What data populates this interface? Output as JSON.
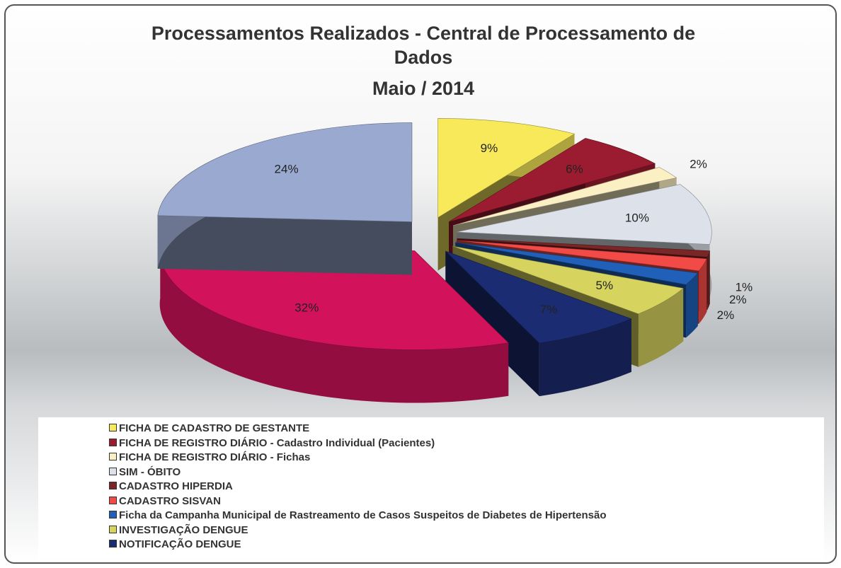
{
  "chart_data": {
    "type": "pie",
    "title": "Processamentos Realizados - Central de Processamento de Dados",
    "subtitle": "Maio / 2014",
    "categories": [
      "FICHA DE CADASTRO DE GESTANTE",
      "FICHA DE REGISTRO DIÁRIO - Cadastro Individual (Pacientes)",
      "FICHA DE REGISTRO DIÁRIO - Fichas",
      "SIM - ÓBITO",
      "CADASTRO HIPERDIA",
      "CADASTRO SISVAN",
      "Ficha da Campanha Municipal de Rastreamento de Casos Suspeitos de Diabetes de Hipertensão",
      "INVESTIGAÇÃO DENGUE",
      "NOTIFICAÇÃO DENGUE",
      null,
      null
    ],
    "values": [
      9,
      6,
      2,
      10,
      1,
      2,
      2,
      5,
      7,
      32,
      24
    ],
    "value_labels": [
      "9%",
      "6%",
      "2%",
      "10%",
      "1%",
      "2%",
      "2%",
      "5%",
      "7%",
      "32%",
      "24%"
    ],
    "colors": [
      "#f7e95a",
      "#9b1c30",
      "#fbefc4",
      "#dde2ea",
      "#7a2626",
      "#f24a46",
      "#2060b8",
      "#d6d45e",
      "#1c2c72",
      "#d3125c",
      "#9aa9cf"
    ]
  }
}
